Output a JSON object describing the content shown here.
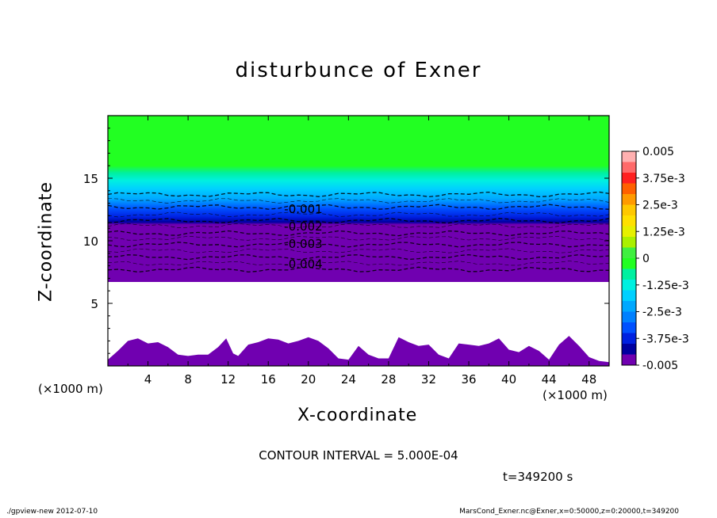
{
  "chart_data": {
    "type": "contour",
    "title": "disturbunce of Exner",
    "xlabel": "X-coordinate",
    "ylabel": "Z-coordinate",
    "x_unit_label": "(×1000 m)",
    "x_unit_label_right": "(×1000 m)",
    "xlim": [
      0,
      50
    ],
    "ylim": [
      0,
      20
    ],
    "x_ticks": [
      "4",
      "8",
      "12",
      "16",
      "20",
      "24",
      "28",
      "32",
      "36",
      "40",
      "44",
      "48"
    ],
    "y_ticks": [
      "5",
      "10",
      "15"
    ],
    "y_tick_values": [
      5,
      10,
      15
    ],
    "x_tick_values": [
      4,
      8,
      12,
      16,
      20,
      24,
      28,
      32,
      36,
      40,
      44,
      48
    ],
    "contour_labels": [
      {
        "text": "-0.001",
        "x": 19.5,
        "z": 12.6
      },
      {
        "text": "-0.002",
        "x": 19.5,
        "z": 11.2
      },
      {
        "text": "-0.003",
        "x": 19.5,
        "z": 9.8
      },
      {
        "text": "-0.004",
        "x": 19.5,
        "z": 8.2
      }
    ],
    "contour_levels_z": [
      13.7,
      13.2,
      12.7,
      12.1,
      11.6,
      11.2,
      10.6,
      10.2,
      9.7,
      9.2,
      8.7,
      8.2,
      7.7
    ],
    "colorbar": {
      "labels": [
        "0.005",
        "3.75e-3",
        "2.5e-3",
        "1.25e-3",
        "0",
        "-1.25e-3",
        "-2.5e-3",
        "-3.75e-3",
        "-0.005"
      ],
      "colors": [
        "#ffb0b0",
        "#ff6a6a",
        "#ff2020",
        "#ff6000",
        "#ff9a00",
        "#ffc800",
        "#ffe000",
        "#e6f000",
        "#aaf000",
        "#40f040",
        "#22ff22",
        "#00f0a0",
        "#00f0e0",
        "#00d0ff",
        "#00a8ff",
        "#0080ff",
        "#0050ff",
        "#0020e0",
        "#0000a0",
        "#7000b0"
      ]
    },
    "surface_profile": {
      "x": [
        0,
        1,
        2,
        3,
        4,
        5,
        6,
        7,
        8,
        9,
        10,
        11,
        11.8,
        12.5,
        13,
        14,
        15,
        16,
        17,
        18,
        19,
        20,
        21,
        22,
        23,
        24,
        25,
        26,
        27,
        28,
        29,
        30,
        31,
        32,
        33,
        34,
        35,
        36,
        37,
        38,
        39,
        40,
        41,
        42,
        43,
        44,
        45,
        46,
        47,
        48,
        49,
        50
      ],
      "z": [
        0.5,
        1.2,
        2.0,
        2.2,
        1.8,
        1.9,
        1.5,
        0.9,
        0.8,
        0.9,
        0.9,
        1.5,
        2.2,
        1.0,
        0.8,
        1.7,
        1.9,
        2.2,
        2.1,
        1.8,
        2.0,
        2.3,
        2.0,
        1.4,
        0.6,
        0.5,
        1.6,
        0.9,
        0.6,
        0.6,
        2.3,
        1.9,
        1.6,
        1.7,
        0.9,
        0.6,
        1.8,
        1.7,
        1.6,
        1.8,
        2.2,
        1.3,
        1.1,
        1.6,
        1.2,
        0.5,
        1.7,
        2.4,
        1.6,
        0.7,
        0.4,
        0.3
      ]
    }
  },
  "contour_interval": "CONTOUR INTERVAL = 5.000E-04",
  "time_label": "t=349200 s",
  "footer": {
    "left": "./gpview-new   2012-07-10",
    "right": "MarsCond_Exner.nc@Exner,x=0:50000,z=0:20000,t=349200"
  }
}
